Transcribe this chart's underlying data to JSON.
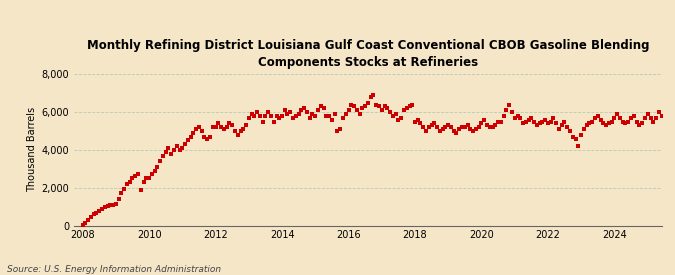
{
  "title": "Monthly Refining District Louisiana Gulf Coast Conventional CBOB Gasoline Blending\nComponents Stocks at Refineries",
  "ylabel": "Thousand Barrels",
  "source": "Source: U.S. Energy Information Administration",
  "background_color": "#f5e6c8",
  "dot_color": "#cc0000",
  "ylim": [
    0,
    8000
  ],
  "yticks": [
    0,
    2000,
    4000,
    6000,
    8000
  ],
  "ytick_labels": [
    "0",
    "2,000",
    "4,000",
    "6,000",
    "8,000"
  ],
  "title_fontsize": 8.5,
  "axis_fontsize": 7,
  "source_fontsize": 6.5,
  "data": [
    50,
    150,
    300,
    450,
    600,
    680,
    750,
    870,
    980,
    1050,
    1100,
    1100,
    1150,
    1400,
    1700,
    1950,
    2200,
    2300,
    2500,
    2600,
    2700,
    1900,
    2300,
    2500,
    2500,
    2700,
    2900,
    3100,
    3400,
    3700,
    3900,
    4100,
    3800,
    4000,
    4200,
    4000,
    4100,
    4300,
    4500,
    4700,
    4900,
    5100,
    5200,
    5000,
    4700,
    4600,
    4700,
    5200,
    5200,
    5400,
    5200,
    5100,
    5200,
    5400,
    5300,
    5000,
    4800,
    5000,
    5100,
    5300,
    5700,
    5900,
    5800,
    6000,
    5800,
    5500,
    5800,
    6000,
    5800,
    5500,
    5800,
    5700,
    5800,
    6100,
    5900,
    6000,
    5700,
    5800,
    5900,
    6100,
    6200,
    6000,
    5700,
    5900,
    5800,
    6100,
    6300,
    6200,
    5800,
    5800,
    5600,
    5900,
    5000,
    5100,
    5700,
    5900,
    6100,
    6400,
    6300,
    6100,
    5900,
    6200,
    6300,
    6500,
    6800,
    6900,
    6400,
    6300,
    6100,
    6300,
    6200,
    6000,
    5800,
    5900,
    5600,
    5700,
    6100,
    6200,
    6300,
    6400,
    5500,
    5600,
    5400,
    5200,
    5000,
    5200,
    5300,
    5400,
    5200,
    5000,
    5100,
    5200,
    5300,
    5200,
    5000,
    4900,
    5100,
    5200,
    5200,
    5300,
    5100,
    5000,
    5100,
    5200,
    5400,
    5600,
    5300,
    5200,
    5200,
    5300,
    5500,
    5500,
    5800,
    6100,
    6400,
    6000,
    5700,
    5800,
    5700,
    5400,
    5500,
    5600,
    5700,
    5500,
    5300,
    5400,
    5500,
    5600,
    5400,
    5500,
    5700,
    5400,
    5100,
    5300,
    5500,
    5200,
    5000,
    4700,
    4600,
    4200,
    4800,
    5100,
    5300,
    5400,
    5500,
    5700,
    5800,
    5600,
    5400,
    5300,
    5400,
    5500,
    5700,
    5900,
    5700,
    5500,
    5400,
    5500,
    5700,
    5800,
    5500,
    5300,
    5400,
    5700,
    5900,
    5700,
    5500,
    5700,
    6000,
    5800
  ],
  "start_year": 2008,
  "start_month": 1
}
